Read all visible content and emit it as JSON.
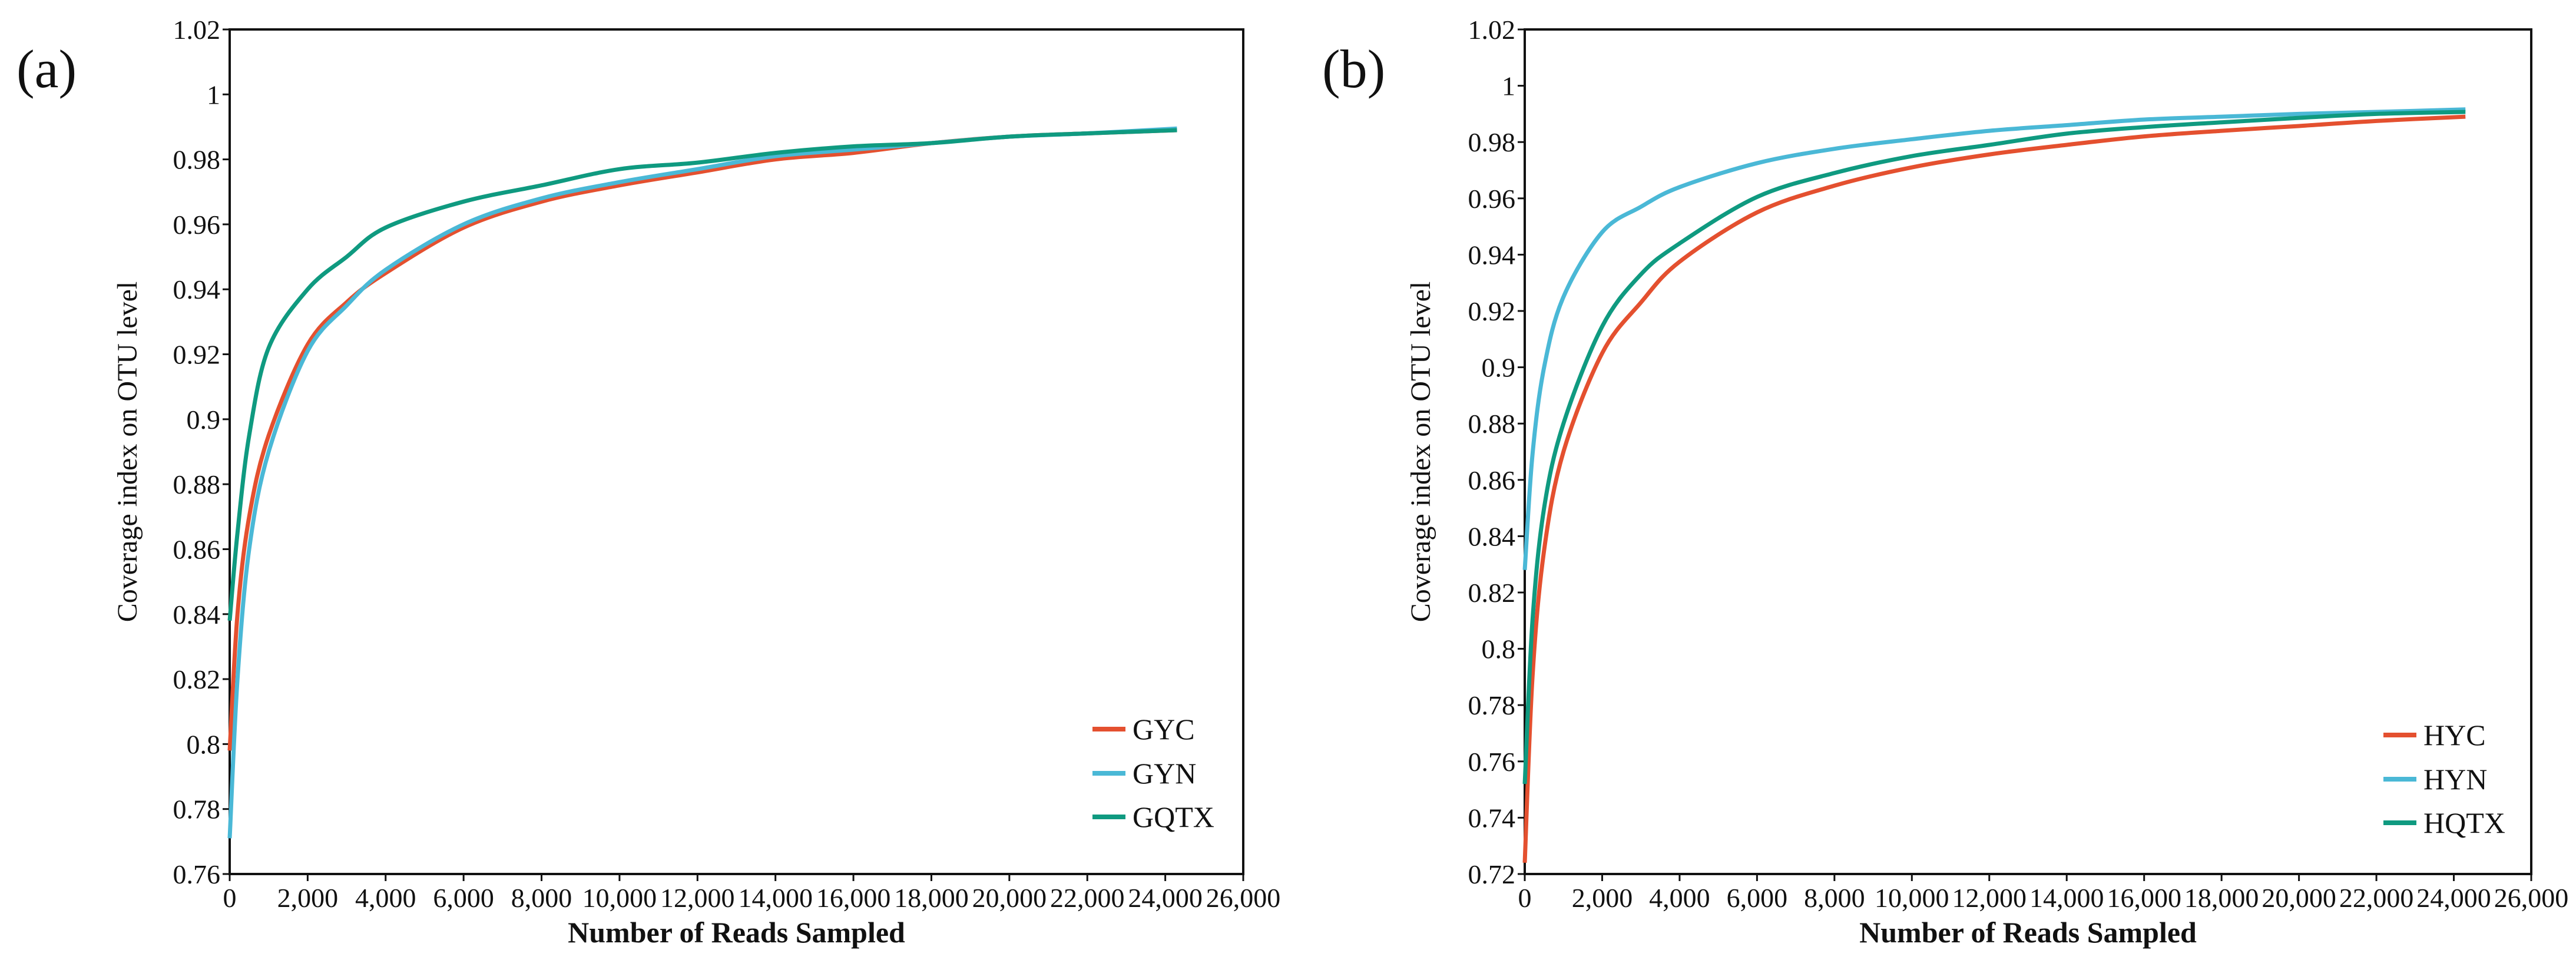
{
  "chart_data": [
    {
      "type": "line",
      "panel_label": "(a)",
      "xlabel": "Number of Reads Sampled",
      "ylabel": "Coverage index on OTU level",
      "xlim": [
        0,
        26000
      ],
      "ylim": [
        0.76,
        1.02
      ],
      "xticks": [
        0,
        2000,
        4000,
        6000,
        8000,
        10000,
        12000,
        14000,
        16000,
        18000,
        20000,
        22000,
        24000,
        26000
      ],
      "xtick_labels": [
        "0",
        "2,000",
        "4,000",
        "6,000",
        "8,000",
        "10,000",
        "12,000",
        "14,000",
        "16,000",
        "18,000",
        "20,000",
        "22,000",
        "24,000",
        "26,000"
      ],
      "yticks": [
        0.76,
        0.78,
        0.8,
        0.82,
        0.84,
        0.86,
        0.88,
        0.9,
        0.92,
        0.94,
        0.96,
        0.98,
        1,
        1.02
      ],
      "ytick_labels": [
        "0.76",
        "0.78",
        "0.8",
        "0.82",
        "0.84",
        "0.86",
        "0.88",
        "0.9",
        "0.92",
        "0.94",
        "0.96",
        "0.98",
        "1",
        "1.02"
      ],
      "grid": false,
      "legend_position": "bottom-right",
      "x": [
        0,
        200,
        500,
        1000,
        2000,
        3000,
        4000,
        6000,
        8000,
        10000,
        12000,
        14000,
        16000,
        18000,
        20000,
        22000,
        24300
      ],
      "series": [
        {
          "name": "GYC",
          "color": "#e4502f",
          "values": [
            0.798,
            0.84,
            0.87,
            0.895,
            0.923,
            0.936,
            0.945,
            0.959,
            0.967,
            0.972,
            0.976,
            0.98,
            0.982,
            0.985,
            0.987,
            0.988,
            0.989
          ]
        },
        {
          "name": "GYN",
          "color": "#4ab8d6",
          "values": [
            0.771,
            0.82,
            0.86,
            0.89,
            0.921,
            0.935,
            0.946,
            0.96,
            0.968,
            0.973,
            0.977,
            0.981,
            0.983,
            0.985,
            0.987,
            0.988,
            0.9895
          ]
        },
        {
          "name": "GQTX",
          "color": "#0f9a80",
          "values": [
            0.838,
            0.865,
            0.895,
            0.922,
            0.94,
            0.95,
            0.959,
            0.967,
            0.972,
            0.977,
            0.979,
            0.982,
            0.984,
            0.985,
            0.987,
            0.988,
            0.989
          ]
        }
      ]
    },
    {
      "type": "line",
      "panel_label": "(b)",
      "xlabel": "Number of Reads Sampled",
      "ylabel": "Coverage index on OTU level",
      "xlim": [
        0,
        26000
      ],
      "ylim": [
        0.72,
        1.02
      ],
      "xticks": [
        0,
        2000,
        4000,
        6000,
        8000,
        10000,
        12000,
        14000,
        16000,
        18000,
        20000,
        22000,
        24000,
        26000
      ],
      "xtick_labels": [
        "0",
        "2,000",
        "4,000",
        "6,000",
        "8,000",
        "10,000",
        "12,000",
        "14,000",
        "16,000",
        "18,000",
        "20,000",
        "22,000",
        "24,000",
        "26,000"
      ],
      "yticks": [
        0.72,
        0.74,
        0.76,
        0.78,
        0.8,
        0.82,
        0.84,
        0.86,
        0.88,
        0.9,
        0.92,
        0.94,
        0.96,
        0.98,
        1,
        1.02
      ],
      "ytick_labels": [
        "0.72",
        "0.74",
        "0.76",
        "0.78",
        "0.8",
        "0.82",
        "0.84",
        "0.86",
        "0.88",
        "0.9",
        "0.92",
        "0.94",
        "0.96",
        "0.98",
        "1",
        "1.02"
      ],
      "grid": false,
      "legend_position": "bottom-right",
      "x": [
        0,
        200,
        500,
        1000,
        2000,
        3000,
        4000,
        6000,
        8000,
        10000,
        12000,
        14000,
        16000,
        18000,
        20000,
        22000,
        24300
      ],
      "series": [
        {
          "name": "HYC",
          "color": "#e4502f",
          "values": [
            0.724,
            0.79,
            0.835,
            0.87,
            0.905,
            0.923,
            0.9375,
            0.955,
            0.9645,
            0.971,
            0.9756,
            0.979,
            0.982,
            0.984,
            0.9857,
            0.9875,
            0.989
          ]
        },
        {
          "name": "HYN",
          "color": "#4ab8d6",
          "values": [
            0.828,
            0.869,
            0.9,
            0.925,
            0.948,
            0.957,
            0.964,
            0.9725,
            0.9776,
            0.981,
            0.984,
            0.986,
            0.988,
            0.989,
            0.99,
            0.9907,
            0.9916
          ]
        },
        {
          "name": "HQTX",
          "color": "#0f9a80",
          "values": [
            0.752,
            0.81,
            0.85,
            0.88,
            0.9145,
            0.933,
            0.944,
            0.9605,
            0.969,
            0.975,
            0.979,
            0.983,
            0.9853,
            0.987,
            0.9886,
            0.99,
            0.9907
          ]
        }
      ]
    }
  ]
}
